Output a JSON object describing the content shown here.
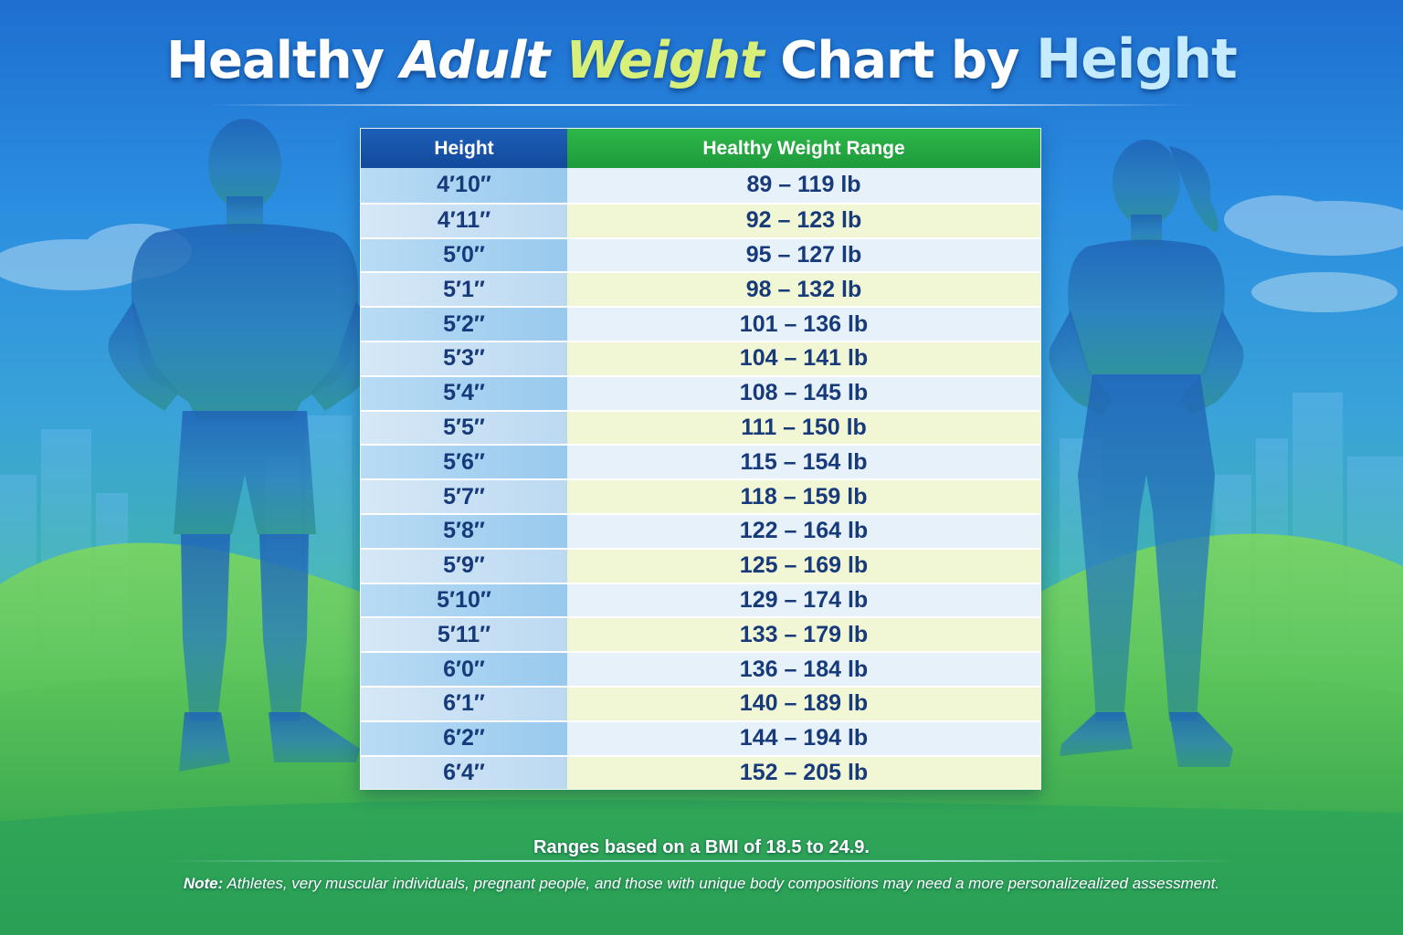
{
  "title": {
    "part1": "Healthy ",
    "part2": "Adult ",
    "part3": "Weight",
    "part4": " Chart by ",
    "part5": "Height"
  },
  "colors": {
    "header_height": "#124a9b",
    "header_weight": "#1e9a3a",
    "title_accent_weight": "#d8ef7a",
    "title_accent_height": "#c4ebff",
    "text": "#173a7a"
  },
  "chart_data": {
    "type": "table",
    "title": "Healthy Adult Weight Chart by Height",
    "columns": [
      "Height",
      "Healthy Weight Range"
    ],
    "rows": [
      {
        "height": "4′10″",
        "range": "89 – 119 lb",
        "min": 89,
        "max": 119
      },
      {
        "height": "4′11″",
        "range": "92 – 123 lb",
        "min": 92,
        "max": 123
      },
      {
        "height": "5′0″",
        "range": "95 – 127 lb",
        "min": 95,
        "max": 127
      },
      {
        "height": "5′1″",
        "range": "98 – 132 lb",
        "min": 98,
        "max": 132
      },
      {
        "height": "5′2″",
        "range": "101 – 136 lb",
        "min": 101,
        "max": 136
      },
      {
        "height": "5′3″",
        "range": "104 – 141 lb",
        "min": 104,
        "max": 141
      },
      {
        "height": "5′4″",
        "range": "108 – 145 lb",
        "min": 108,
        "max": 145
      },
      {
        "height": "5′5″",
        "range": "111 – 150 lb",
        "min": 111,
        "max": 150
      },
      {
        "height": "5′6″",
        "range": "115 – 154 lb",
        "min": 115,
        "max": 154
      },
      {
        "height": "5′7″",
        "range": "118 – 159 lb",
        "min": 118,
        "max": 159
      },
      {
        "height": "5′8″",
        "range": "122 – 164 lb",
        "min": 122,
        "max": 164
      },
      {
        "height": "5′9″",
        "range": "125 – 169 lb",
        "min": 125,
        "max": 169
      },
      {
        "height": "5′10″",
        "range": "129 – 174 lb",
        "min": 129,
        "max": 174
      },
      {
        "height": "5′11″",
        "range": "133 – 179 lb",
        "min": 133,
        "max": 179
      },
      {
        "height": "6′0″",
        "range": "136 – 184 lb",
        "min": 136,
        "max": 184
      },
      {
        "height": "6′1″",
        "range": "140 – 189 lb",
        "min": 140,
        "max": 189
      },
      {
        "height": "6′2″",
        "range": "144 – 194 lb",
        "min": 144,
        "max": 194
      },
      {
        "height": "6′4″",
        "range": "152 – 205 lb",
        "min": 152,
        "max": 205
      }
    ]
  },
  "footnote": "Ranges based on a BMI of 18.5 to 24.9.",
  "note": {
    "label": "Note:",
    "text": " Athletes, very muscular individuals, pregnant people, and those with unique body compositions may need a more personalizealized assessment."
  },
  "icons": [
    "male-silhouette-icon",
    "female-silhouette-icon",
    "city-skyline-icon",
    "cloud-icon",
    "hills-icon"
  ]
}
